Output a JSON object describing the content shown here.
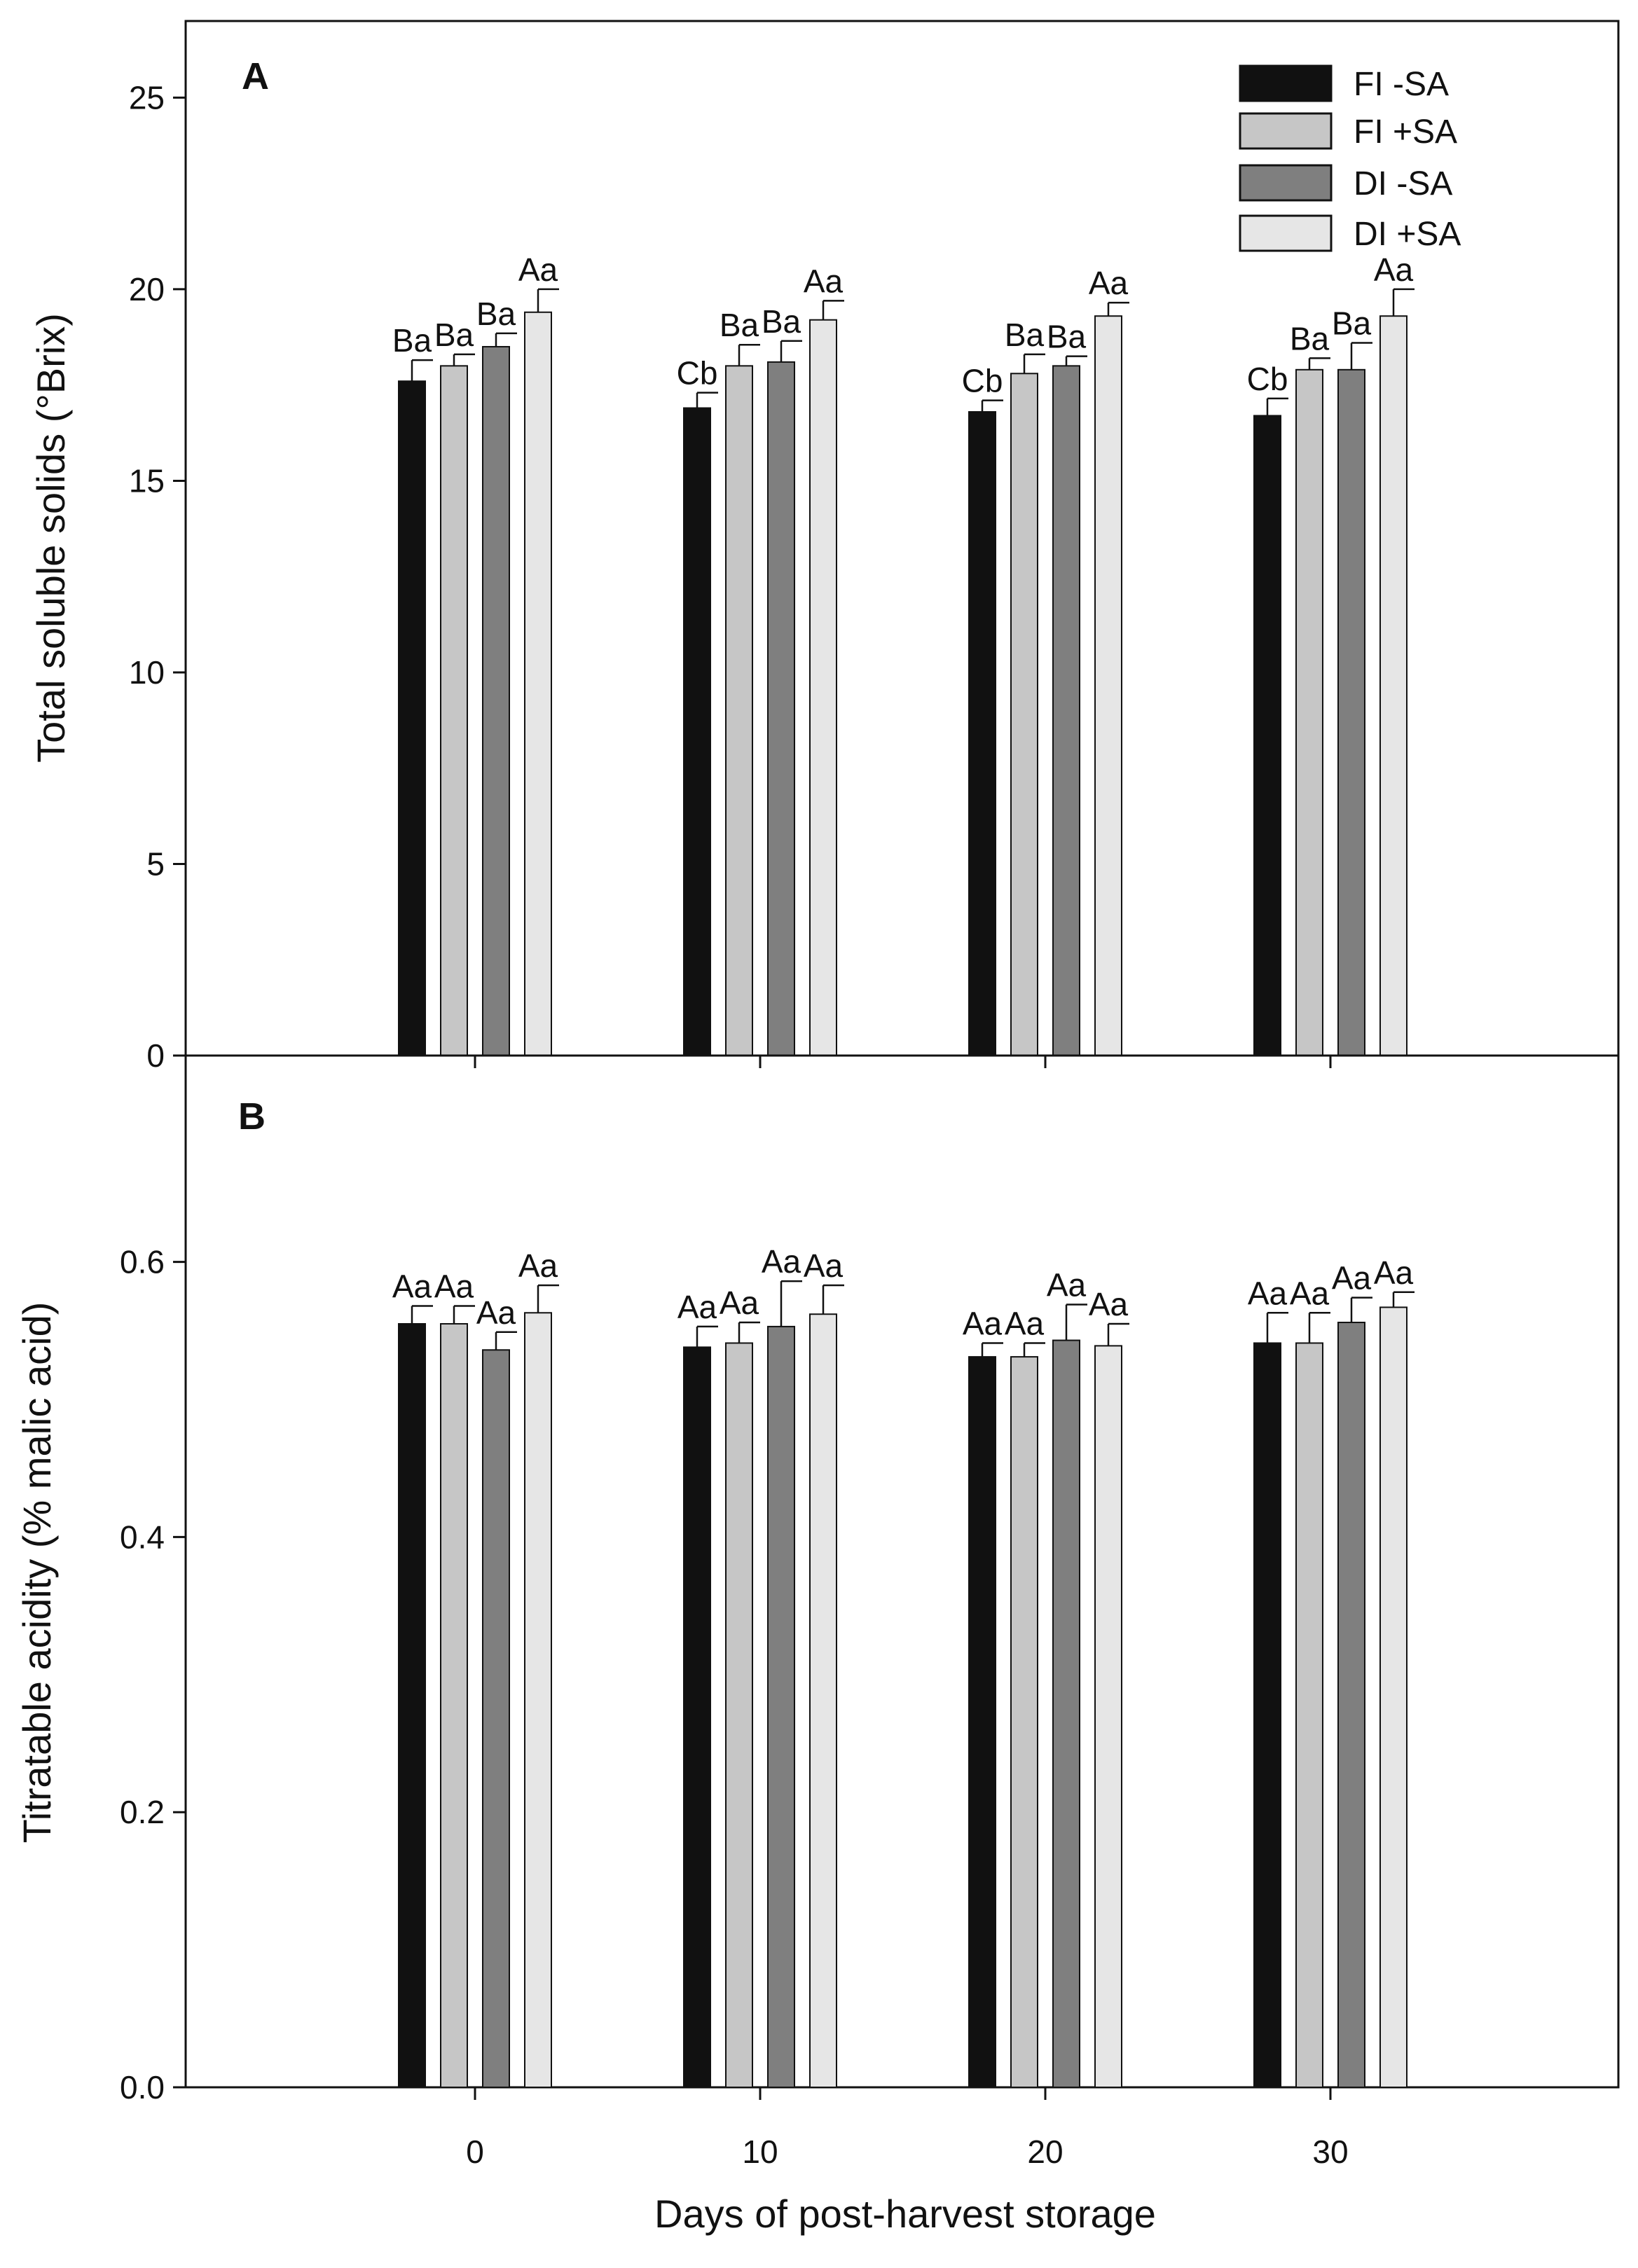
{
  "chart_data": [
    {
      "panel": "A",
      "type": "bar",
      "ylabel": "Total soluble solids (°Brix)",
      "ylim": [
        0,
        27
      ],
      "yticks": [
        "0",
        "5",
        "10",
        "15",
        "20",
        "25"
      ],
      "ytick_values": [
        0,
        5,
        10,
        15,
        20,
        25
      ],
      "categories": [
        "0",
        "10",
        "20",
        "30"
      ],
      "category_values": [
        0,
        10,
        20,
        30
      ],
      "legend": {
        "position": "top-right",
        "entries": [
          "FI -SA",
          "FI +SA",
          "DI -SA",
          "DI +SA"
        ]
      },
      "series": [
        {
          "name": "FI -SA",
          "color": "#111111",
          "values": [
            17.6,
            16.9,
            16.8,
            16.7
          ],
          "errors": [
            0.55,
            0.4,
            0.3,
            0.45
          ],
          "labels": [
            "Ba",
            "Cb",
            "Cb",
            "Cb"
          ]
        },
        {
          "name": "FI +SA",
          "color": "#c6c6c6",
          "values": [
            18.0,
            18.0,
            17.8,
            17.9
          ],
          "errors": [
            0.3,
            0.55,
            0.5,
            0.3
          ],
          "labels": [
            "Ba",
            "Ba",
            "Ba",
            "Ba"
          ]
        },
        {
          "name": "DI -SA",
          "color": "#7f7f7f",
          "values": [
            18.5,
            18.1,
            18.0,
            17.9
          ],
          "errors": [
            0.35,
            0.55,
            0.25,
            0.7
          ],
          "labels": [
            "Ba",
            "Ba",
            "Ba",
            "Ba"
          ]
        },
        {
          "name": "DI +SA",
          "color": "#e6e6e6",
          "values": [
            19.4,
            19.2,
            19.3,
            19.3
          ],
          "errors": [
            0.6,
            0.5,
            0.35,
            0.7
          ],
          "labels": [
            "Aa",
            "Aa",
            "Aa",
            "Aa"
          ]
        }
      ]
    },
    {
      "panel": "B",
      "type": "bar",
      "ylabel": "Titratable acidity (% malic acid)",
      "xlabel": "Days of post-harvest storage",
      "ylim": [
        0,
        0.75
      ],
      "yticks": [
        "0.0",
        "0.2",
        "0.4",
        "0.6"
      ],
      "ytick_values": [
        0,
        0.2,
        0.4,
        0.6
      ],
      "categories": [
        "0",
        "10",
        "20",
        "30"
      ],
      "category_values": [
        0,
        10,
        20,
        30
      ],
      "series": [
        {
          "name": "FI -SA",
          "color": "#111111",
          "values": [
            0.555,
            0.538,
            0.531,
            0.541
          ],
          "errors": [
            0.013,
            0.015,
            0.01,
            0.022
          ],
          "labels": [
            "Aa",
            "Aa",
            "Aa",
            "Aa"
          ]
        },
        {
          "name": "FI +SA",
          "color": "#c6c6c6",
          "values": [
            0.555,
            0.541,
            0.531,
            0.541
          ],
          "errors": [
            0.013,
            0.015,
            0.01,
            0.022
          ],
          "labels": [
            "Aa",
            "Aa",
            "Aa",
            "Aa"
          ]
        },
        {
          "name": "DI -SA",
          "color": "#7f7f7f",
          "values": [
            0.536,
            0.553,
            0.543,
            0.556
          ],
          "errors": [
            0.013,
            0.033,
            0.026,
            0.018
          ],
          "labels": [
            "Aa",
            "Aa",
            "Aa",
            "Aa"
          ]
        },
        {
          "name": "DI +SA",
          "color": "#e6e6e6",
          "values": [
            0.563,
            0.562,
            0.539,
            0.567
          ],
          "errors": [
            0.02,
            0.021,
            0.016,
            0.011
          ],
          "labels": [
            "Aa",
            "Aa",
            "Aa",
            "Aa"
          ]
        }
      ]
    }
  ]
}
